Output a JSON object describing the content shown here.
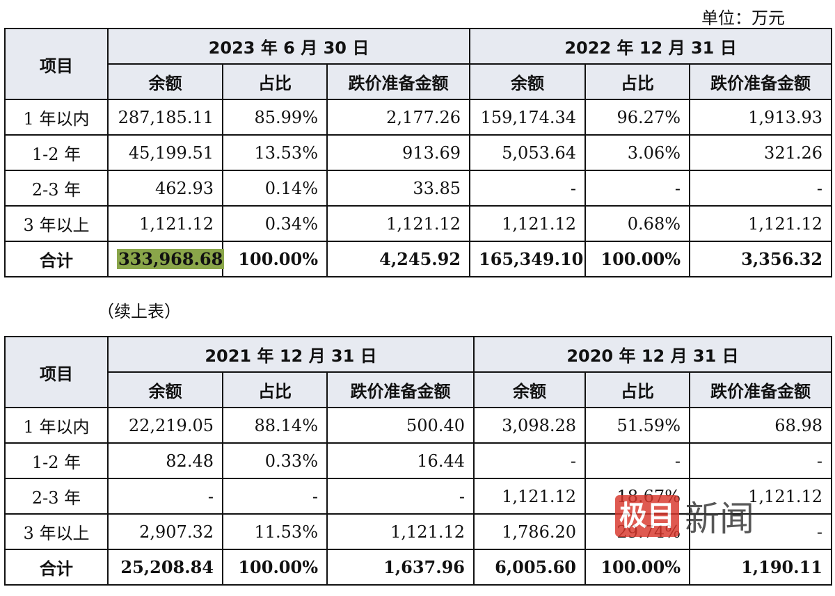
{
  "unit_label": "单位：万元",
  "continuation_label": "（续上表）",
  "watermark": {
    "box": "极目",
    "text": "新闻"
  },
  "header_item": "项目",
  "col_labels": [
    "余额",
    "占比",
    "跌价准备金额"
  ],
  "tables": [
    {
      "periods": [
        "2023 年 6 月 30 日",
        "2022 年 12 月 31 日"
      ],
      "rows": [
        {
          "label": "1 年以内",
          "cells": [
            "287,185.11",
            "85.99%",
            "2,177.26",
            "159,174.34",
            "96.27%",
            "1,913.93"
          ]
        },
        {
          "label": "1-2 年",
          "cells": [
            "45,199.51",
            "13.53%",
            "913.69",
            "5,053.64",
            "3.06%",
            "321.26"
          ]
        },
        {
          "label": "2-3 年",
          "cells": [
            "462.93",
            "0.14%",
            "33.85",
            "-",
            "-",
            "-"
          ]
        },
        {
          "label": "3 年以上",
          "cells": [
            "1,121.12",
            "0.34%",
            "1,121.12",
            "1,121.12",
            "0.68%",
            "1,121.12"
          ]
        },
        {
          "label": "合计",
          "cells": [
            "333,968.68",
            "100.00%",
            "4,245.92",
            "165,349.10",
            "100.00%",
            "3,356.32"
          ]
        }
      ]
    },
    {
      "periods": [
        "2021 年 12 月 31 日",
        "2020 年 12 月 31 日"
      ],
      "rows": [
        {
          "label": "1 年以内",
          "cells": [
            "22,219.05",
            "88.14%",
            "500.40",
            "3,098.28",
            "51.59%",
            "68.98"
          ]
        },
        {
          "label": "1-2 年",
          "cells": [
            "82.48",
            "0.33%",
            "16.44",
            "-",
            "-",
            "-"
          ]
        },
        {
          "label": "2-3 年",
          "cells": [
            "-",
            "-",
            "-",
            "1,121.12",
            "18.67%",
            "1,121.12"
          ]
        },
        {
          "label": "3 年以上",
          "cells": [
            "2,907.32",
            "11.53%",
            "1,121.12",
            "1,786.20",
            "29.74%",
            "-"
          ]
        },
        {
          "label": "合计",
          "cells": [
            "25,208.84",
            "100.00%",
            "1,637.96",
            "6,005.60",
            "100.00%",
            "1,190.11"
          ]
        }
      ]
    }
  ]
}
